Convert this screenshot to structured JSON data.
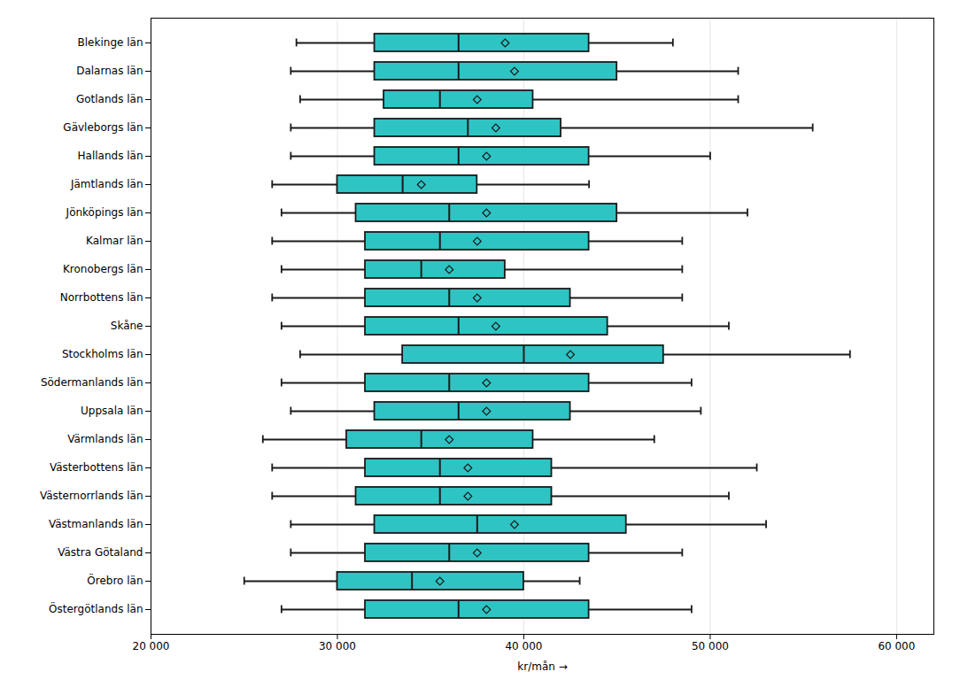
{
  "chart_data": {
    "type": "box",
    "orientation": "horizontal",
    "categories": [
      "Blekinge län",
      "Dalarnas län",
      "Gotlands län",
      "Gävleborgs län",
      "Hallands län",
      "Jämtlands län",
      "Jönköpings län",
      "Kalmar län",
      "Kronobergs län",
      "Norrbottens län",
      "Skåne",
      "Stockholms län",
      "Södermanlands län",
      "Uppsala län",
      "Värmlands län",
      "Västerbottens län",
      "Västernorrlands län",
      "Västmanlands län",
      "Västra Götaland",
      "Örebro län",
      "Östergötlands län"
    ],
    "whislo": [
      27800,
      27500,
      28000,
      27500,
      27500,
      26500,
      27000,
      26500,
      27000,
      26500,
      27000,
      28000,
      27000,
      27500,
      26000,
      26500,
      26500,
      27500,
      27500,
      25000,
      27000
    ],
    "q1": [
      32000,
      32000,
      32500,
      32000,
      32000,
      30000,
      31000,
      31500,
      31500,
      31500,
      31500,
      33500,
      31500,
      32000,
      30500,
      31500,
      31000,
      32000,
      31500,
      30000,
      31500
    ],
    "median": [
      36500,
      36500,
      35500,
      37000,
      36500,
      33500,
      36000,
      35500,
      34500,
      36000,
      36500,
      40000,
      36000,
      36500,
      34500,
      35500,
      35500,
      37500,
      36000,
      34000,
      36500
    ],
    "q3": [
      43500,
      45000,
      40500,
      42000,
      43500,
      37500,
      45000,
      43500,
      39000,
      42500,
      44500,
      47500,
      43500,
      42500,
      40500,
      41500,
      41500,
      45500,
      43500,
      40000,
      43500
    ],
    "whishi": [
      48000,
      51500,
      51500,
      55500,
      50000,
      43500,
      52000,
      48500,
      48500,
      48500,
      51000,
      57500,
      49000,
      49500,
      47000,
      52500,
      51000,
      53000,
      48500,
      43000,
      49000
    ],
    "mean": [
      39000,
      39500,
      37500,
      38500,
      38000,
      34500,
      38000,
      37500,
      36000,
      37500,
      38500,
      42500,
      38000,
      38000,
      36000,
      37000,
      37000,
      39500,
      37500,
      35500,
      38000
    ],
    "color": "#2EC4C4",
    "marker": "diamond",
    "xlabel": "kr/mån",
    "xlim": [
      20000,
      62000
    ],
    "xticks": [
      {
        "value": 20000,
        "label": "20 000"
      },
      {
        "value": 30000,
        "label": "30 000"
      },
      {
        "value": 40000,
        "label": "40 000"
      },
      {
        "value": 50000,
        "label": "50 000"
      },
      {
        "value": 60000,
        "label": "60 000"
      }
    ],
    "grid": true
  }
}
